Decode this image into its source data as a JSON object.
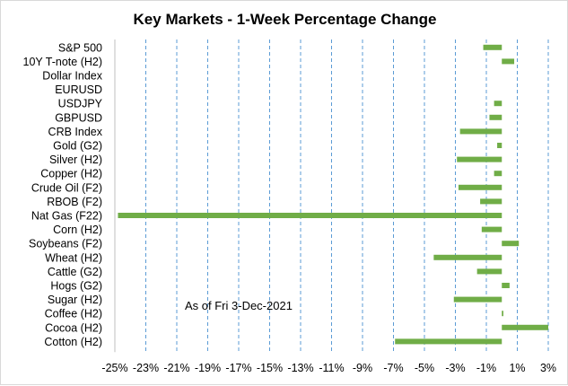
{
  "chart_data": {
    "type": "bar",
    "orientation": "horizontal",
    "title": "Key Markets - 1-Week Percentage Change",
    "annotation": "As of Fri 3-Dec-2021",
    "bar_color": "#70ad47",
    "grid": true,
    "grid_style": "dashed vertical",
    "xlim": [
      -25,
      3
    ],
    "x_ticks": [
      -25,
      -23,
      -21,
      -19,
      -17,
      -15,
      -13,
      -11,
      -9,
      -7,
      -5,
      -3,
      -1,
      1,
      3
    ],
    "x_tick_labels": [
      "-25%",
      "-23%",
      "-21%",
      "-19%",
      "-17%",
      "-15%",
      "-13%",
      "-11%",
      "-9%",
      "-7%",
      "-5%",
      "-3%",
      "-1%",
      "1%",
      "3%"
    ],
    "categories": [
      "S&P 500",
      "10Y T-note (H2)",
      "Dollar Index",
      "EURUSD",
      "USDJPY",
      "GBPUSD",
      "CRB Index",
      "Gold (G2)",
      "Silver (H2)",
      "Copper (H2)",
      "Crude Oil (F2)",
      "RBOB (F2)",
      "Nat Gas (F22)",
      "Corn (H2)",
      "Soybeans (F2)",
      "Wheat (H2)",
      "Cattle (G2)",
      "Hogs (G2)",
      "Sugar (H2)",
      "Coffee (H2)",
      "Cocoa (H2)",
      "Cotton (H2)"
    ],
    "values": [
      -1.2,
      0.8,
      0.0,
      0.0,
      -0.5,
      -0.8,
      -2.7,
      -0.3,
      -2.9,
      -0.5,
      -2.8,
      -1.4,
      -24.8,
      -1.3,
      1.1,
      -4.4,
      -1.6,
      0.5,
      -3.1,
      0.1,
      3.0,
      -6.9
    ]
  }
}
